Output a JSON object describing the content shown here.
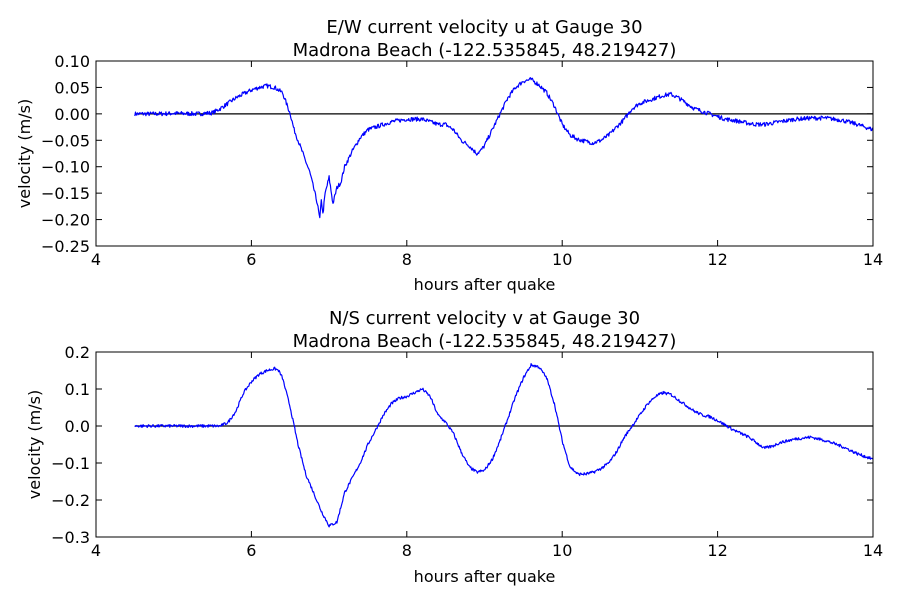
{
  "figure": {
    "background": "#ffffff",
    "line_color": "#0000ff"
  },
  "chart_data": [
    {
      "type": "line",
      "title": "E/W current velocity u at Gauge 30",
      "subtitle": "Madrona Beach  (-122.535845, 48.219427)",
      "xlabel": "hours after quake",
      "ylabel": "velocity (m/s)",
      "xlim": [
        4,
        14
      ],
      "ylim": [
        -0.25,
        0.1
      ],
      "xticks": [
        4,
        6,
        8,
        10,
        12,
        14
      ],
      "xtick_labels": [
        "4",
        "6",
        "8",
        "10",
        "12",
        "14"
      ],
      "yticks": [
        -0.25,
        -0.2,
        -0.15,
        -0.1,
        -0.05,
        0.0,
        0.05,
        0.1
      ],
      "ytick_labels": [
        "−0.25",
        "−0.20",
        "−0.15",
        "−0.10",
        "−0.05",
        "0.00",
        "0.05",
        "0.10"
      ],
      "zero_line": {
        "y": 0,
        "x_range": [
          4.5,
          14
        ]
      },
      "grid": false,
      "series": [
        {
          "color": "#0000ff",
          "noise": 0.004,
          "x": [
            4.5,
            4.8,
            5.0,
            5.3,
            5.5,
            5.6,
            5.8,
            5.9,
            6.0,
            6.1,
            6.2,
            6.3,
            6.4,
            6.45,
            6.5,
            6.55,
            6.6,
            6.65,
            6.7,
            6.75,
            6.8,
            6.85,
            6.88,
            6.9,
            6.92,
            6.95,
            7.0,
            7.05,
            7.1,
            7.15,
            7.2,
            7.3,
            7.4,
            7.5,
            7.6,
            7.7,
            7.8,
            8.0,
            8.2,
            8.3,
            8.4,
            8.5,
            8.6,
            8.7,
            8.8,
            8.9,
            8.95,
            9.0,
            9.1,
            9.2,
            9.3,
            9.4,
            9.5,
            9.6,
            9.7,
            9.8,
            9.9,
            10.0,
            10.1,
            10.2,
            10.3,
            10.4,
            10.5,
            10.6,
            10.7,
            10.8,
            10.9,
            11.0,
            11.1,
            11.2,
            11.3,
            11.4,
            11.5,
            11.6,
            11.7,
            11.8,
            11.9,
            12.0,
            12.1,
            12.2,
            12.3,
            12.4,
            12.5,
            12.6,
            12.8,
            13.0,
            13.2,
            13.4,
            13.6,
            13.8,
            14.0
          ],
          "y": [
            0.0,
            0.0,
            0.001,
            0.0,
            0.002,
            0.01,
            0.03,
            0.038,
            0.045,
            0.05,
            0.053,
            0.05,
            0.04,
            0.02,
            0.0,
            -0.03,
            -0.05,
            -0.07,
            -0.09,
            -0.11,
            -0.14,
            -0.17,
            -0.2,
            -0.16,
            -0.19,
            -0.15,
            -0.12,
            -0.17,
            -0.14,
            -0.13,
            -0.1,
            -0.07,
            -0.045,
            -0.03,
            -0.025,
            -0.02,
            -0.015,
            -0.01,
            -0.01,
            -0.015,
            -0.02,
            -0.02,
            -0.03,
            -0.05,
            -0.06,
            -0.075,
            -0.07,
            -0.06,
            -0.03,
            0.0,
            0.03,
            0.05,
            0.062,
            0.065,
            0.055,
            0.04,
            0.015,
            -0.02,
            -0.04,
            -0.048,
            -0.052,
            -0.055,
            -0.05,
            -0.04,
            -0.025,
            -0.01,
            0.01,
            0.02,
            0.025,
            0.03,
            0.035,
            0.037,
            0.03,
            0.02,
            0.01,
            0.005,
            0.0,
            -0.005,
            -0.01,
            -0.012,
            -0.015,
            -0.018,
            -0.02,
            -0.02,
            -0.015,
            -0.01,
            -0.008,
            -0.008,
            -0.012,
            -0.02,
            -0.03
          ]
        }
      ]
    },
    {
      "type": "line",
      "title": "N/S current velocity v at Gauge 30",
      "subtitle": "Madrona Beach  (-122.535845, 48.219427)",
      "xlabel": "hours after quake",
      "ylabel": "velocity (m/s)",
      "xlim": [
        4,
        14
      ],
      "ylim": [
        -0.3,
        0.2
      ],
      "xticks": [
        4,
        6,
        8,
        10,
        12,
        14
      ],
      "xtick_labels": [
        "4",
        "6",
        "8",
        "10",
        "12",
        "14"
      ],
      "yticks": [
        -0.3,
        -0.2,
        -0.1,
        0.0,
        0.1,
        0.2
      ],
      "ytick_labels": [
        "−0.3",
        "−0.2",
        "−0.1",
        "0.0",
        "0.1",
        "0.2"
      ],
      "zero_line": {
        "y": 0,
        "x_range": [
          4.5,
          14
        ]
      },
      "grid": false,
      "series": [
        {
          "color": "#0000ff",
          "noise": 0.004,
          "x": [
            4.5,
            5.0,
            5.5,
            5.6,
            5.7,
            5.8,
            5.9,
            6.0,
            6.1,
            6.2,
            6.3,
            6.35,
            6.4,
            6.5,
            6.6,
            6.7,
            6.8,
            6.9,
            7.0,
            7.1,
            7.2,
            7.3,
            7.4,
            7.5,
            7.6,
            7.7,
            7.8,
            7.9,
            8.0,
            8.1,
            8.2,
            8.3,
            8.4,
            8.5,
            8.6,
            8.7,
            8.8,
            8.9,
            9.0,
            9.1,
            9.2,
            9.3,
            9.4,
            9.5,
            9.6,
            9.7,
            9.8,
            9.9,
            10.0,
            10.1,
            10.2,
            10.3,
            10.4,
            10.5,
            10.6,
            10.7,
            10.8,
            10.9,
            11.0,
            11.1,
            11.2,
            11.3,
            11.4,
            11.5,
            11.6,
            11.7,
            11.8,
            11.9,
            12.0,
            12.2,
            12.4,
            12.6,
            12.7,
            12.8,
            13.0,
            13.2,
            13.4,
            13.6,
            13.8,
            14.0
          ],
          "y": [
            0.0,
            0.0,
            0.0,
            0.0,
            0.01,
            0.04,
            0.09,
            0.12,
            0.14,
            0.15,
            0.155,
            0.15,
            0.13,
            0.05,
            -0.05,
            -0.13,
            -0.18,
            -0.23,
            -0.27,
            -0.26,
            -0.18,
            -0.14,
            -0.1,
            -0.05,
            -0.01,
            0.03,
            0.06,
            0.075,
            0.08,
            0.09,
            0.1,
            0.08,
            0.03,
            0.01,
            -0.02,
            -0.07,
            -0.11,
            -0.125,
            -0.12,
            -0.09,
            -0.04,
            0.02,
            0.08,
            0.13,
            0.165,
            0.16,
            0.13,
            0.06,
            -0.04,
            -0.11,
            -0.13,
            -0.13,
            -0.125,
            -0.115,
            -0.1,
            -0.07,
            -0.03,
            0.0,
            0.03,
            0.06,
            0.08,
            0.09,
            0.085,
            0.07,
            0.055,
            0.04,
            0.03,
            0.025,
            0.015,
            -0.01,
            -0.03,
            -0.06,
            -0.055,
            -0.045,
            -0.035,
            -0.03,
            -0.04,
            -0.055,
            -0.075,
            -0.09
          ]
        }
      ]
    }
  ]
}
